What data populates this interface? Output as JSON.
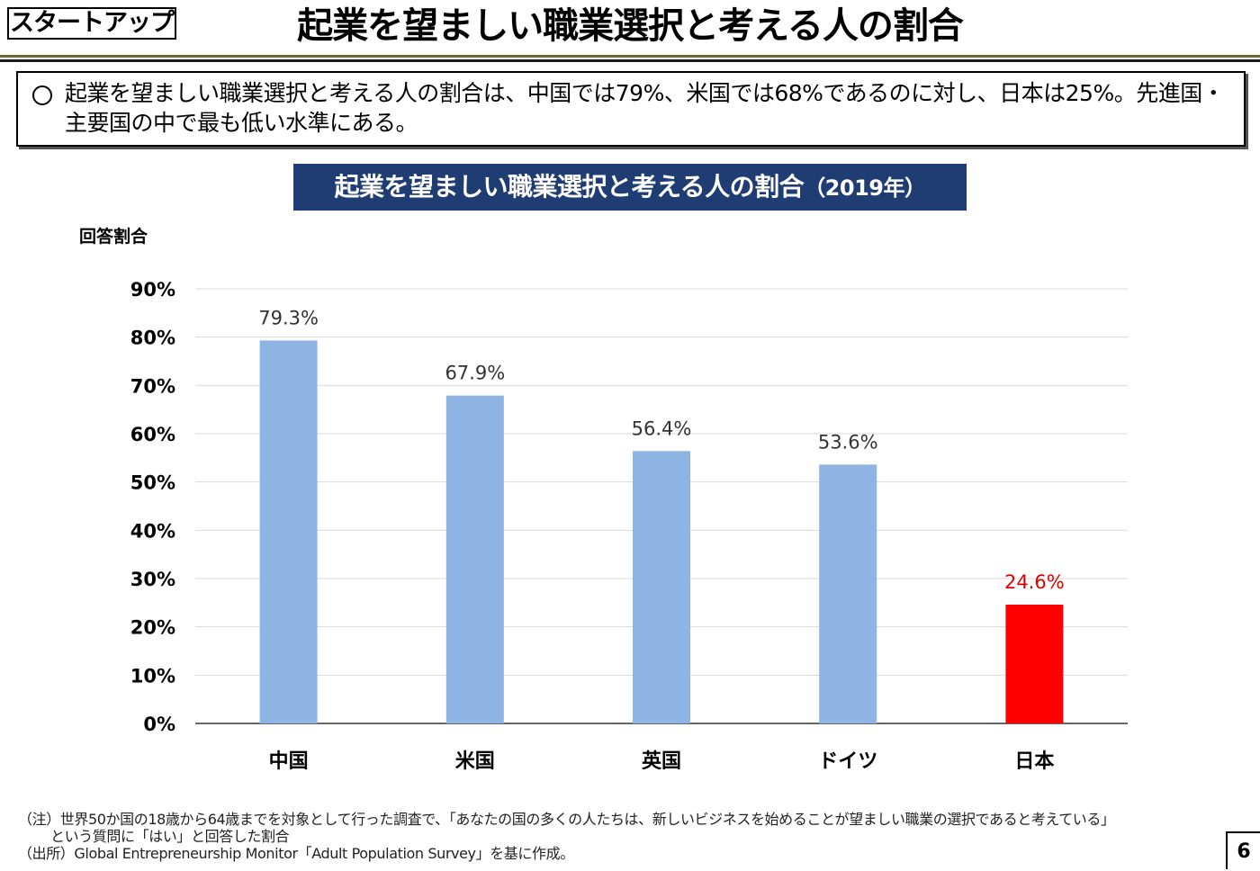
{
  "header": {
    "tag": "スタートアップ",
    "title": "起業を望ましい職業選択と考える人の割合"
  },
  "summary": {
    "text": "起業を望ましい職業選択と考える人の割合は、中国では79%、米国では68%であるのに対し、日本は25%。先進国・主要国の中で最も低い水準にある。"
  },
  "chart_title": {
    "main": "起業を望ましい職業選択と考える人の割合",
    "year": "（2019年）"
  },
  "chart_data": {
    "type": "bar",
    "title": "起業を望ましい職業選択と考える人の割合（2019年）",
    "ylabel": "回答割合",
    "xlabel": "",
    "categories": [
      "中国",
      "米国",
      "英国",
      "ドイツ",
      "日本"
    ],
    "values": [
      79.3,
      67.9,
      56.4,
      53.6,
      24.6
    ],
    "value_labels": [
      "79.3%",
      "67.9%",
      "56.4%",
      "53.6%",
      "24.6%"
    ],
    "ylim": [
      0,
      90
    ],
    "yticks": [
      "0%",
      "10%",
      "20%",
      "30%",
      "40%",
      "50%",
      "60%",
      "70%",
      "80%",
      "90%"
    ],
    "grid": true,
    "colors": [
      "#8eb4e3",
      "#8eb4e3",
      "#8eb4e3",
      "#8eb4e3",
      "#ff0000"
    ],
    "label_colors": [
      "#333333",
      "#333333",
      "#333333",
      "#333333",
      "#e00000"
    ]
  },
  "notes": {
    "note_line1": "（注）世界50か国の18歳から64歳までを対象として行った調査で、「あなたの国の多くの人たちは、新しいビジネスを始めることが望ましい職業の選択であると考えている」",
    "note_line2": "という質問に「はい」と回答した割合",
    "source": "（出所）Global Entrepreneurship Monitor「Adult Population Survey」を基に作成。"
  },
  "page_number": "6"
}
